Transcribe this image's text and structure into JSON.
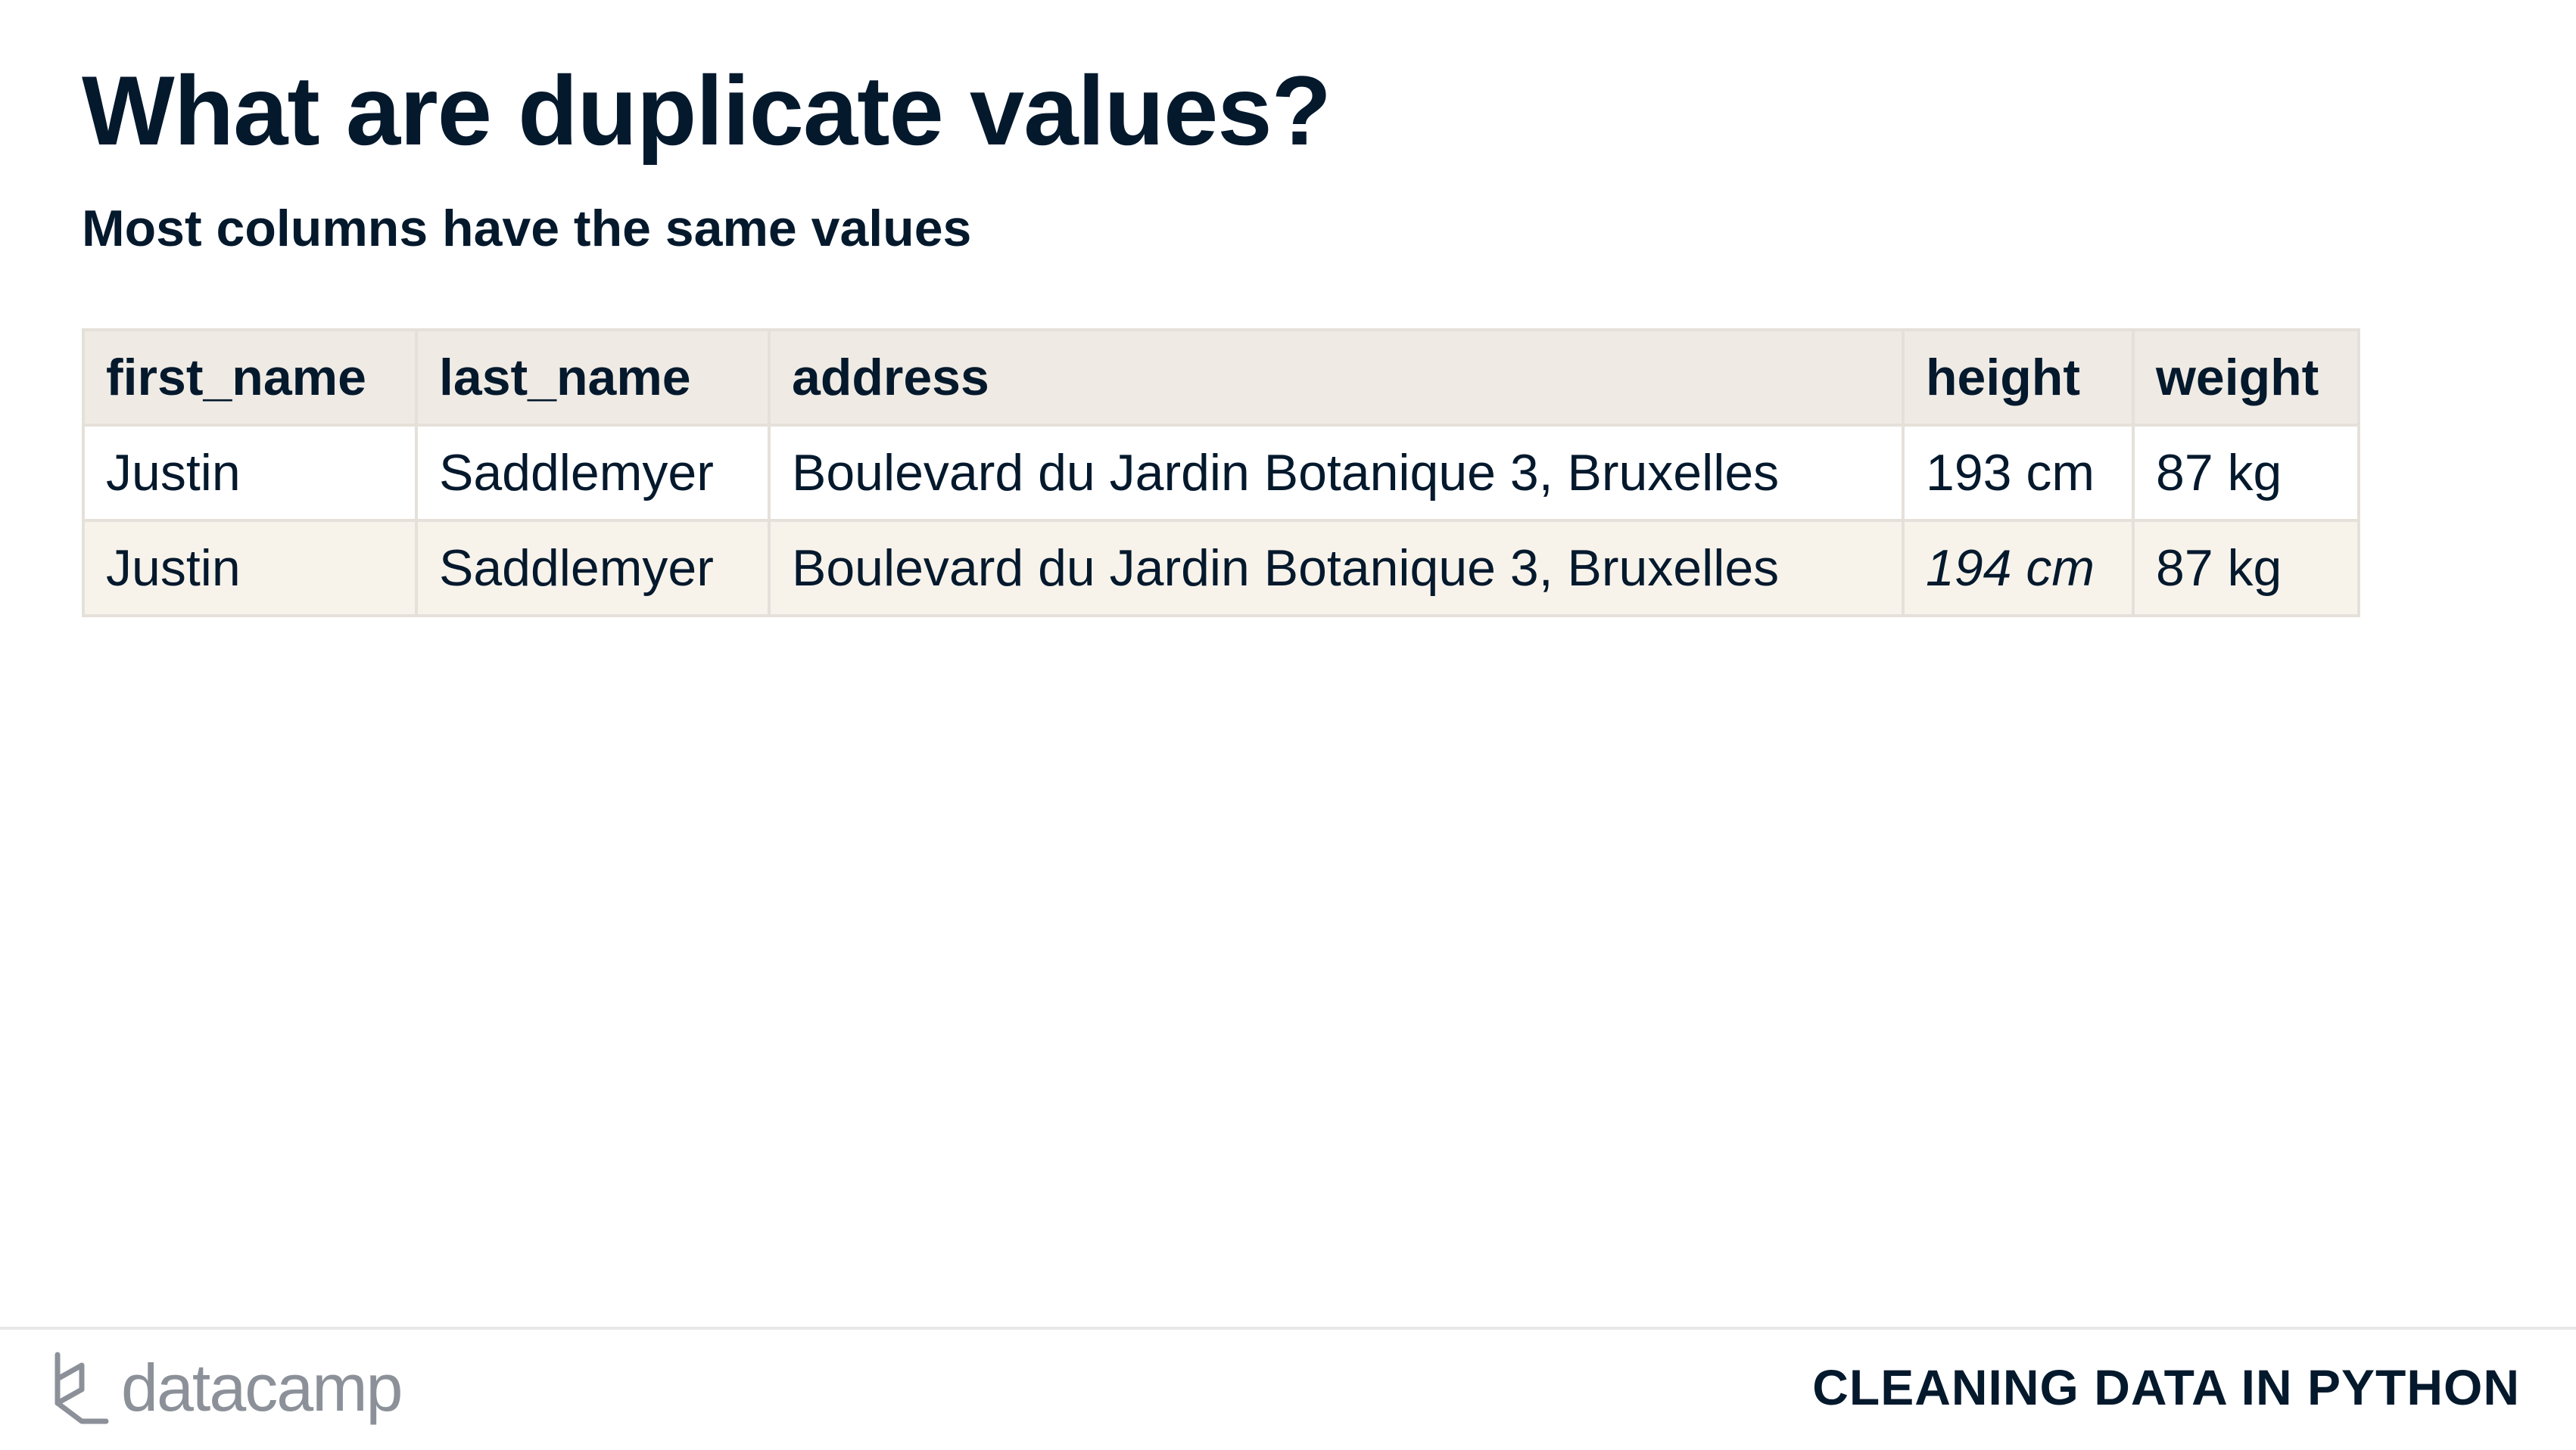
{
  "slide": {
    "title": "What are duplicate values?",
    "subtitle": "Most columns have the same values"
  },
  "table": {
    "headers": [
      "first_name",
      "last_name",
      "address",
      "height",
      "weight"
    ],
    "rows": [
      [
        "Justin",
        "Saddlemyer",
        "Boulevard du Jardin Botanique 3, Bruxelles",
        "193 cm",
        "87 kg"
      ],
      [
        "Justin",
        "Saddlemyer",
        "Boulevard du Jardin Botanique 3, Bruxelles",
        "194 cm",
        "87 kg"
      ]
    ],
    "highlighted_cell": {
      "row": 1,
      "column": "height"
    },
    "header_bg": "#efebe4",
    "row_alt_bg": "#f7f3eb",
    "border_color": "#e5e1da"
  },
  "footer": {
    "brand_icon": "datacamp-logo-icon",
    "brand_name": "datacamp",
    "course_name": "CLEANING DATA IN PYTHON"
  },
  "colors": {
    "text": "#05192d",
    "brand_gray": "#8c9199"
  }
}
